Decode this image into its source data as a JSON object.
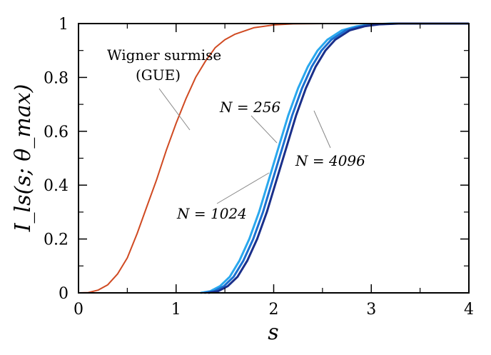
{
  "chart_data": {
    "type": "line",
    "xlabel": "s",
    "ylabel": "I_ls(s; θ_max)",
    "xlim": [
      0,
      4
    ],
    "ylim": [
      0,
      1
    ],
    "xticks": [
      "0",
      "1",
      "2",
      "3",
      "4"
    ],
    "yticks": [
      "0",
      "0.2",
      "0.4",
      "0.6",
      "0.8",
      "1"
    ],
    "grid": false,
    "series": [
      {
        "name": "Wigner surmise (GUE)",
        "color": "#d04a22",
        "x": [
          0,
          0.1,
          0.2,
          0.3,
          0.4,
          0.5,
          0.6,
          0.7,
          0.8,
          0.9,
          1.0,
          1.1,
          1.2,
          1.3,
          1.4,
          1.5,
          1.6,
          1.8,
          2.0,
          2.2,
          2.5,
          3.0,
          4.0
        ],
        "y": [
          0,
          0.001,
          0.01,
          0.03,
          0.07,
          0.13,
          0.22,
          0.32,
          0.42,
          0.53,
          0.63,
          0.72,
          0.8,
          0.86,
          0.91,
          0.94,
          0.96,
          0.985,
          0.995,
          0.999,
          1.0,
          1.0,
          1.0
        ]
      },
      {
        "name": "N = 256",
        "color": "#2aa8ee",
        "x": [
          1.25,
          1.35,
          1.45,
          1.55,
          1.65,
          1.75,
          1.85,
          1.95,
          2.05,
          2.15,
          2.25,
          2.35,
          2.45,
          2.55,
          2.7,
          2.85,
          3.0,
          3.2,
          3.5,
          4.0
        ],
        "y": [
          0,
          0.006,
          0.025,
          0.06,
          0.12,
          0.2,
          0.3,
          0.42,
          0.54,
          0.66,
          0.76,
          0.84,
          0.9,
          0.94,
          0.975,
          0.99,
          0.997,
          1.0,
          1.0,
          1.0
        ]
      },
      {
        "name": "N = 1024",
        "color": "#1a6fd0",
        "x": [
          1.29,
          1.39,
          1.49,
          1.59,
          1.69,
          1.79,
          1.89,
          1.99,
          2.09,
          2.19,
          2.29,
          2.39,
          2.49,
          2.59,
          2.74,
          2.89,
          3.04,
          3.24,
          3.54,
          4.0
        ],
        "y": [
          0,
          0.006,
          0.025,
          0.06,
          0.12,
          0.2,
          0.3,
          0.42,
          0.54,
          0.66,
          0.76,
          0.84,
          0.9,
          0.94,
          0.975,
          0.99,
          0.997,
          1.0,
          1.0,
          1.0
        ]
      },
      {
        "name": "N = 4096",
        "color": "#1a2f8a",
        "x": [
          1.33,
          1.43,
          1.53,
          1.63,
          1.73,
          1.83,
          1.93,
          2.03,
          2.13,
          2.23,
          2.33,
          2.43,
          2.53,
          2.63,
          2.78,
          2.93,
          3.08,
          3.28,
          3.58,
          4.0
        ],
        "y": [
          0,
          0.006,
          0.025,
          0.06,
          0.12,
          0.2,
          0.3,
          0.42,
          0.54,
          0.66,
          0.76,
          0.84,
          0.9,
          0.94,
          0.975,
          0.99,
          0.997,
          1.0,
          1.0,
          1.0
        ]
      }
    ],
    "annotations": [
      {
        "text": "Wigner surmise",
        "series": 0
      },
      {
        "text": "(GUE)",
        "series": 0
      },
      {
        "text": "N = 256",
        "series": 1
      },
      {
        "text": "N = 1024",
        "series": 2
      },
      {
        "text": "N = 4096",
        "series": 3
      }
    ]
  }
}
